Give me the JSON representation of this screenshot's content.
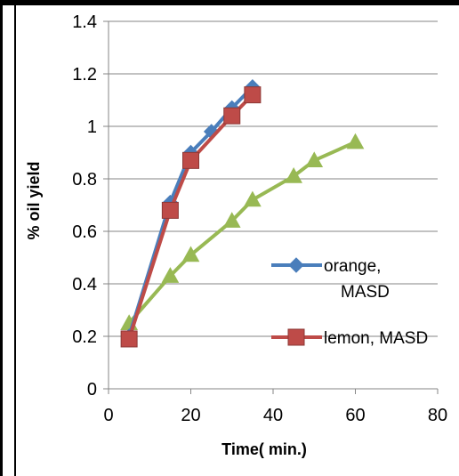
{
  "chart_data": {
    "type": "line",
    "title": "",
    "xlabel": "Time( min.)",
    "ylabel": "% oil yield",
    "xlim": [
      0,
      80
    ],
    "ylim": [
      0,
      1.4
    ],
    "xticks": [
      0,
      20,
      40,
      60,
      80
    ],
    "yticks": [
      0,
      0.2,
      0.4,
      0.6,
      0.8,
      1,
      1.2,
      1.4
    ],
    "xtick_labels": [
      "0",
      "20",
      "40",
      "60",
      "80"
    ],
    "ytick_labels": [
      "0",
      "0.2",
      "0.4",
      "0.6",
      "0.8",
      "1",
      "1.2",
      "1.4"
    ],
    "grid": "horizontal",
    "legend_position": "right",
    "series": [
      {
        "name": "orange, MASD",
        "color": "#4a7ebb",
        "marker": "diamond",
        "in_legend": true,
        "points": [
          [
            5,
            0.2
          ],
          [
            15,
            0.71
          ],
          [
            20,
            0.9
          ],
          [
            25,
            0.98
          ],
          [
            30,
            1.07
          ],
          [
            35,
            1.15
          ]
        ]
      },
      {
        "name": "lemon, MASD",
        "color": "#be4b48",
        "marker": "square",
        "in_legend": true,
        "points": [
          [
            5,
            0.19
          ],
          [
            15,
            0.68
          ],
          [
            20,
            0.87
          ],
          [
            30,
            1.04
          ],
          [
            35,
            1.12
          ]
        ]
      },
      {
        "name": "",
        "color": "#98b954",
        "marker": "triangle",
        "in_legend": false,
        "points": [
          [
            5,
            0.25
          ],
          [
            15,
            0.43
          ],
          [
            20,
            0.51
          ],
          [
            30,
            0.64
          ],
          [
            35,
            0.72
          ],
          [
            45,
            0.81
          ],
          [
            50,
            0.87
          ],
          [
            60,
            0.94
          ]
        ]
      }
    ]
  }
}
